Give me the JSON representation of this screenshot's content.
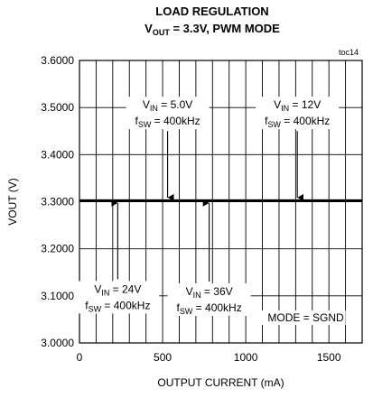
{
  "chart_data": {
    "type": "line",
    "title": "LOAD REGULATION",
    "subtitle": {
      "prefix": "V",
      "sub": "OUT",
      "suffix": " = 3.3V, PWM MODE"
    },
    "figure_id": "toc14",
    "xlabel": "OUTPUT CURRENT (mA)",
    "ylabel": "VOUT (V)",
    "xlim": [
      0,
      1700
    ],
    "ylim": [
      3.0,
      3.6
    ],
    "x_ticks": [
      0,
      500,
      1000,
      1500
    ],
    "x_tick_labels": [
      "0",
      "500",
      "1000",
      "1500"
    ],
    "y_ticks": [
      3.0,
      3.1,
      3.2,
      3.3,
      3.4,
      3.5,
      3.6
    ],
    "y_tick_labels": [
      "3.0000",
      "3.1000",
      "3.2000",
      "3.3000",
      "3.4000",
      "3.5000",
      "3.6000"
    ],
    "x_minor_step": 100,
    "grid": true,
    "series": [
      {
        "x": [
          0,
          1700
        ],
        "y": [
          3.3025,
          3.3025
        ]
      },
      {
        "x": [
          0,
          1700
        ],
        "y": [
          3.3035,
          3.3035
        ]
      },
      {
        "x": [
          0,
          1700
        ],
        "y": [
          3.302,
          3.302
        ]
      },
      {
        "x": [
          0,
          1700
        ],
        "y": [
          3.303,
          3.303
        ]
      }
    ],
    "annotations": [
      {
        "lines": [
          {
            "main": "V",
            "sub": "IN",
            "rest": " = 5.0V"
          },
          {
            "main": "f",
            "sub": "SW",
            "rest": " = 400kHz"
          }
        ],
        "arrow_x": 530,
        "arrow_dir": "down",
        "at": [
          530,
          3.5
        ]
      },
      {
        "lines": [
          {
            "main": "V",
            "sub": "IN",
            "rest": " = 12V"
          },
          {
            "main": "f",
            "sub": "SW",
            "rest": " = 400kHz"
          }
        ],
        "arrow_x": 1310,
        "arrow_dir": "down",
        "at": [
          1310,
          3.5
        ]
      },
      {
        "lines": [
          {
            "main": "V",
            "sub": "IN",
            "rest": " = 24V"
          },
          {
            "main": "f",
            "sub": "SW",
            "rest": " = 400kHz"
          }
        ],
        "arrow_x": 230,
        "arrow_dir": "up",
        "at": [
          230,
          3.12
        ]
      },
      {
        "lines": [
          {
            "main": "V",
            "sub": "IN",
            "rest": " = 36V"
          },
          {
            "main": "f",
            "sub": "SW",
            "rest": " = 400kHz"
          }
        ],
        "arrow_x": 780,
        "arrow_dir": "up",
        "at": [
          780,
          3.115
        ]
      }
    ],
    "mode_label": "MODE = SGND"
  }
}
